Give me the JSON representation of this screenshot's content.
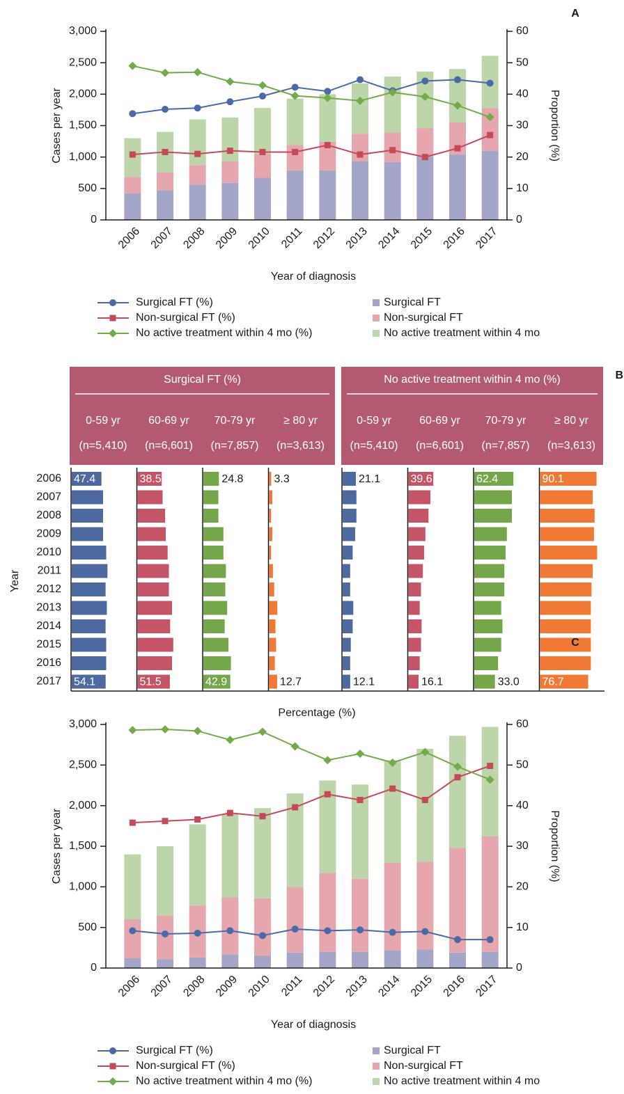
{
  "chart_data": [
    {
      "type": "combo",
      "panel_label": "A",
      "categories": [
        "2006",
        "2007",
        "2008",
        "2009",
        "2010",
        "2011",
        "2012",
        "2013",
        "2014",
        "2015",
        "2016",
        "2017"
      ],
      "x_label": "Year of diagnosis",
      "y_label": "Cases per year",
      "y2_label": "Proportion (%)",
      "ylim": [
        0,
        3000
      ],
      "yticks": [
        0,
        500,
        {
          "value": 1000,
          "label": "1,000"
        },
        {
          "value": 1500,
          "label": "1,500"
        },
        {
          "value": 2000,
          "label": "2,000"
        },
        {
          "value": 2500,
          "label": "2,500"
        },
        {
          "value": 3000,
          "label": "3,000"
        }
      ],
      "y2lim": [
        0,
        60
      ],
      "y2ticks": [
        0,
        10,
        20,
        30,
        40,
        50,
        60
      ],
      "series": [
        {
          "name": "Surgical FT (%)",
          "type": "line",
          "marker": "circle",
          "axis": "y2",
          "color": "#4a6aa5",
          "values": [
            33.8,
            35.2,
            35.6,
            37.6,
            39.4,
            42.2,
            40.9,
            44.6,
            41.1,
            44.2,
            44.6,
            43.5
          ]
        },
        {
          "name": "Non-surgical FT (%)",
          "type": "line",
          "marker": "square",
          "axis": "y2",
          "color": "#c44a5a",
          "values": [
            20.8,
            21.6,
            21.0,
            22.0,
            21.6,
            21.6,
            23.8,
            20.8,
            22.2,
            20.0,
            22.8,
            27.0
          ]
        },
        {
          "name": "No active treatment within 4 mo (%)",
          "type": "line",
          "marker": "diamond",
          "axis": "y2",
          "color": "#74ab4a",
          "values": [
            49.0,
            46.8,
            47.0,
            44.0,
            42.8,
            39.5,
            38.8,
            37.9,
            40.6,
            39.2,
            36.4,
            32.7
          ]
        },
        {
          "name": "Surgical FT",
          "type": "bar",
          "color": "#a3a6c9",
          "values": [
            420,
            470,
            560,
            590,
            670,
            790,
            790,
            930,
            920,
            1010,
            1040,
            1100
          ]
        },
        {
          "name": "Non-surgical FT",
          "type": "bar",
          "color": "#e6a6ae",
          "values": [
            260,
            290,
            310,
            340,
            380,
            400,
            450,
            440,
            470,
            450,
            510,
            680
          ]
        },
        {
          "name": "No active treatment within 4 mo",
          "type": "bar",
          "color": "#bdd6a9",
          "values": [
            620,
            640,
            730,
            700,
            730,
            740,
            760,
            800,
            890,
            900,
            850,
            830
          ]
        }
      ]
    },
    {
      "type": "hbar",
      "panel_label": "B",
      "y_label": "Year",
      "x_label": "Percentage (%)",
      "categories": [
        "2006",
        "2007",
        "2008",
        "2009",
        "2010",
        "2011",
        "2012",
        "2013",
        "2014",
        "2015",
        "2016",
        "2017"
      ],
      "xlim": [
        0,
        100
      ],
      "header_color": "#b45a70",
      "groups": [
        {
          "title": "Surgical FT (%)",
          "series": [
            {
              "name": "0-59 yr",
              "n": "(n=5,410)",
              "color": "#4d6aa0",
              "values": [
                47.4,
                50,
                50,
                50,
                55,
                57,
                54,
                56,
                54,
                55,
                55,
                54.1
              ],
              "value_labels": [
                "47.4",
                null,
                null,
                null,
                null,
                null,
                null,
                null,
                null,
                null,
                null,
                "54.1"
              ]
            },
            {
              "name": "60-69 yr",
              "n": "(n=6,601)",
              "color": "#c45566",
              "values": [
                38.5,
                40,
                44,
                45,
                48,
                50,
                50,
                55,
                52,
                57,
                55,
                51.5
              ],
              "value_labels": [
                "38.5",
                null,
                null,
                null,
                null,
                null,
                null,
                null,
                null,
                null,
                null,
                "51.5"
              ]
            },
            {
              "name": "70-79 yr",
              "n": "(n=7,857)",
              "color": "#74a64a",
              "values": [
                24.8,
                24,
                24,
                32,
                32,
                36,
                35,
                38,
                34,
                40,
                44,
                42.9
              ],
              "value_labels": [
                "24.8",
                null,
                null,
                null,
                null,
                null,
                null,
                null,
                null,
                null,
                null,
                "42.9"
              ]
            },
            {
              "name": "≥ 80 yr",
              "n": "(n=3,613)",
              "color": "#f07a35",
              "values": [
                3.3,
                5,
                3,
                5,
                3,
                6,
                8,
                13,
                10,
                11,
                9,
                12.7
              ],
              "value_labels": [
                "3.3",
                null,
                null,
                null,
                null,
                null,
                null,
                null,
                null,
                null,
                null,
                "12.7"
              ]
            }
          ]
        },
        {
          "title": "No active treatment within 4 mo (%)",
          "series": [
            {
              "name": "0-59 yr",
              "n": "(n=5,410)",
              "color": "#4d6aa0",
              "values": [
                21.1,
                22,
                22,
                20,
                16,
                12,
                12,
                17,
                16,
                13,
                12,
                12.1
              ],
              "value_labels": [
                "21.1",
                null,
                null,
                null,
                null,
                null,
                null,
                null,
                null,
                null,
                null,
                "12.1"
              ]
            },
            {
              "name": "60-69 yr",
              "n": "(n=6,601)",
              "color": "#c45566",
              "values": [
                39.6,
                35,
                32,
                27,
                25,
                23,
                20,
                18,
                21,
                20,
                18,
                16.1
              ],
              "value_labels": [
                "39.6",
                null,
                null,
                null,
                null,
                null,
                null,
                null,
                null,
                null,
                null,
                "16.1"
              ]
            },
            {
              "name": "70-79 yr",
              "n": "(n=7,857)",
              "color": "#74a64a",
              "values": [
                62.4,
                60,
                60,
                52,
                50,
                48,
                48,
                43,
                45,
                43,
                38,
                33.0
              ],
              "value_labels": [
                "62.4",
                null,
                null,
                null,
                null,
                null,
                null,
                null,
                null,
                null,
                null,
                "33.0"
              ]
            },
            {
              "name": "≥ 80 yr",
              "n": "(n=3,613)",
              "color": "#f07a35",
              "values": [
                90.1,
                84,
                87,
                86,
                91,
                84,
                82,
                81,
                81,
                81,
                81,
                76.7
              ],
              "value_labels": [
                "90.1",
                null,
                null,
                null,
                null,
                null,
                null,
                null,
                null,
                null,
                null,
                "76.7"
              ]
            }
          ]
        }
      ]
    },
    {
      "type": "combo",
      "panel_label": "C",
      "categories": [
        "2006",
        "2007",
        "2008",
        "2009",
        "2010",
        "2011",
        "2012",
        "2013",
        "2014",
        "2015",
        "2016",
        "2017"
      ],
      "x_label": "Year of diagnosis",
      "y_label": "Cases per year",
      "y2_label": "Proportion (%)",
      "ylim": [
        0,
        3000
      ],
      "yticks": [
        0,
        500,
        {
          "value": 1000,
          "label": "1,000"
        },
        {
          "value": 1500,
          "label": "1,500"
        },
        {
          "value": 2000,
          "label": "2,000"
        },
        {
          "value": 2500,
          "label": "2,500"
        },
        {
          "value": 3000,
          "label": "3,000"
        }
      ],
      "y2lim": [
        0,
        60
      ],
      "y2ticks": [
        0,
        10,
        20,
        30,
        40,
        50,
        60
      ],
      "series": [
        {
          "name": "Surgical FT (%)",
          "type": "line",
          "marker": "circle",
          "axis": "y2",
          "color": "#4a6aa5",
          "values": [
            9.2,
            8.4,
            8.6,
            9.2,
            8.0,
            9.6,
            9.2,
            9.4,
            8.8,
            9.0,
            7.0,
            7.0
          ]
        },
        {
          "name": "Non-surgical FT (%)",
          "type": "line",
          "marker": "square",
          "axis": "y2",
          "color": "#c44a5a",
          "values": [
            35.8,
            36.2,
            36.6,
            38.2,
            37.4,
            39.6,
            42.8,
            41.4,
            44.2,
            41.4,
            47.0,
            49.8
          ]
        },
        {
          "name": "No active treatment within 4 mo (%)",
          "type": "line",
          "marker": "diamond",
          "axis": "y2",
          "color": "#74ab4a",
          "values": [
            58.6,
            58.8,
            58.4,
            56.2,
            58.2,
            54.6,
            51.2,
            52.8,
            50.6,
            53.2,
            49.6,
            46.4
          ]
        },
        {
          "name": "Surgical FT",
          "type": "bar",
          "color": "#a3a6c9",
          "values": [
            120,
            110,
            130,
            170,
            150,
            190,
            200,
            200,
            220,
            230,
            190,
            200
          ]
        },
        {
          "name": "Non-surgical FT",
          "type": "bar",
          "color": "#e6a6ae",
          "values": [
            480,
            540,
            640,
            700,
            710,
            810,
            970,
            900,
            1080,
            1080,
            1290,
            1420
          ]
        },
        {
          "name": "No active treatment within 4 mo",
          "type": "bar",
          "color": "#bdd6a9",
          "values": [
            800,
            850,
            1000,
            1030,
            1110,
            1150,
            1140,
            1160,
            1260,
            1390,
            1380,
            1350
          ]
        }
      ]
    }
  ]
}
